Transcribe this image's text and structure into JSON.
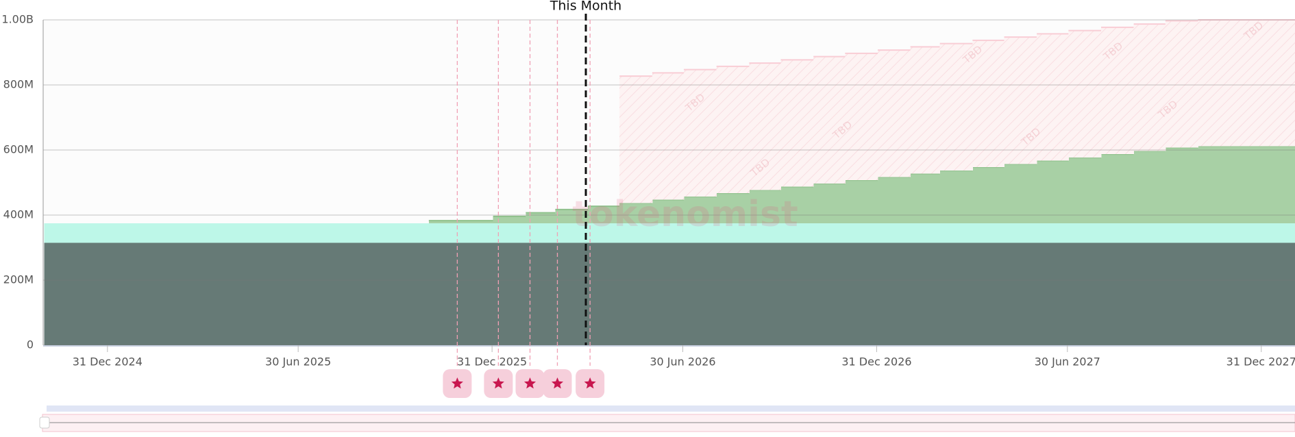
{
  "chart_data": {
    "type": "stacked-step-area",
    "x": [
      "2024-11-01",
      "2024-12-01",
      "2025-01-01",
      "2025-02-01",
      "2025-03-01",
      "2025-04-01",
      "2025-05-01",
      "2025-06-01",
      "2025-07-01",
      "2025-08-01",
      "2025-09-01",
      "2025-10-01",
      "2025-11-01",
      "2025-12-01",
      "2026-01-01",
      "2026-02-01",
      "2026-03-01",
      "2026-04-01",
      "2026-05-01",
      "2026-06-01",
      "2026-07-01",
      "2026-08-01",
      "2026-09-01",
      "2026-10-01",
      "2026-11-01",
      "2026-12-01",
      "2027-01-01",
      "2027-02-01",
      "2027-03-01",
      "2027-04-01",
      "2027-05-01",
      "2027-06-01",
      "2027-07-01",
      "2027-08-01",
      "2027-09-01",
      "2027-10-01",
      "2027-11-01",
      "2027-12-01",
      "2028-01-01"
    ],
    "series": [
      {
        "color": "#667a76",
        "values": [
          315000000,
          315000000,
          315000000,
          315000000,
          315000000,
          315000000,
          315000000,
          315000000,
          315000000,
          315000000,
          315000000,
          315000000,
          315000000,
          315000000,
          315000000,
          315000000,
          315000000,
          315000000,
          315000000,
          315000000,
          315000000,
          315000000,
          315000000,
          315000000,
          315000000,
          315000000,
          315000000,
          315000000,
          315000000,
          315000000,
          315000000,
          315000000,
          315000000,
          315000000,
          315000000,
          315000000,
          315000000,
          315000000,
          315000000
        ]
      },
      {
        "color": "#bdf7e8",
        "values": [
          60000000,
          60000000,
          60000000,
          60000000,
          60000000,
          60000000,
          60000000,
          60000000,
          60000000,
          60000000,
          60000000,
          60000000,
          60000000,
          60000000,
          60000000,
          60000000,
          60000000,
          60000000,
          60000000,
          60000000,
          60000000,
          60000000,
          60000000,
          60000000,
          60000000,
          60000000,
          60000000,
          60000000,
          60000000,
          60000000,
          60000000,
          60000000,
          60000000,
          60000000,
          60000000,
          60000000,
          60000000,
          60000000,
          60000000
        ]
      },
      {
        "color": "#a8d0a5",
        "values": [
          null,
          null,
          null,
          null,
          null,
          null,
          null,
          null,
          null,
          null,
          null,
          null,
          8000000,
          8000000,
          21000000,
          32000000,
          42000000,
          52000000,
          62000000,
          72000000,
          82000000,
          92000000,
          102000000,
          112000000,
          122000000,
          132000000,
          142000000,
          152000000,
          162000000,
          172000000,
          182000000,
          192000000,
          202000000,
          212000000,
          222000000,
          232000000,
          237000000,
          237000000,
          237000000
        ]
      },
      {
        "color": "#f9cdd5",
        "hatched": true,
        "values": [
          null,
          null,
          null,
          null,
          null,
          null,
          null,
          null,
          null,
          null,
          null,
          null,
          null,
          null,
          null,
          null,
          null,
          null,
          390000000,
          390000000,
          390000000,
          390000000,
          390000000,
          390000000,
          390000000,
          390000000,
          390000000,
          390000000,
          390000000,
          390000000,
          390000000,
          390000000,
          390000000,
          390000000,
          390000000,
          390000000,
          388000000,
          388000000,
          388000000
        ]
      }
    ],
    "xlim": [
      "2024-10-31",
      "2028-02-01"
    ],
    "xticks": [
      {
        "value": "2024-12-31",
        "label": "31 Dec 2024"
      },
      {
        "value": "2025-06-30",
        "label": "30 Jun 2025"
      },
      {
        "value": "2025-12-31",
        "label": "31 Dec 2025"
      },
      {
        "value": "2026-06-30",
        "label": "30 Jun 2026"
      },
      {
        "value": "2026-12-31",
        "label": "31 Dec 2026"
      },
      {
        "value": "2027-06-30",
        "label": "30 Jun 2027"
      },
      {
        "value": "2027-12-31",
        "label": "31 Dec 2027"
      }
    ],
    "ylim": [
      0,
      1000000000
    ],
    "yticks": [
      0,
      {
        "value": 200000000,
        "label": "200M"
      },
      {
        "value": 400000000,
        "label": "400M"
      },
      {
        "value": 600000000,
        "label": "600M"
      },
      {
        "value": 800000000,
        "label": "800M"
      },
      {
        "value": 1000000000,
        "label": "1.00B"
      }
    ],
    "grid": true,
    "events": [
      "2025-11-28",
      "2026-01-06",
      "2026-02-05",
      "2026-03-03",
      "2026-04-03"
    ],
    "current_marker": {
      "x": "2026-03-30",
      "label": "This Month"
    },
    "tbd_label": "TBD",
    "watermark": "tokenomist"
  }
}
